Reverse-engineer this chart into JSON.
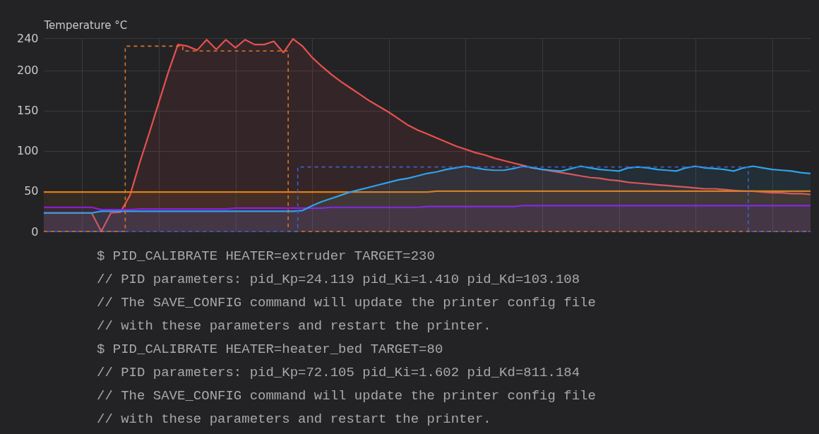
{
  "chart_data": {
    "type": "area",
    "ylabel": "Temperature °C",
    "categories": [
      null,
      null,
      null,
      null,
      null,
      null,
      null,
      null,
      null,
      null,
      null,
      null,
      null,
      null,
      null,
      null,
      null,
      null,
      null,
      null,
      null,
      null,
      null,
      null,
      null,
      null,
      null,
      null,
      null,
      null,
      null,
      null,
      null,
      null,
      null,
      null,
      null,
      null,
      null,
      null,
      null,
      null,
      null,
      null,
      null,
      null,
      null,
      null,
      null,
      null,
      null,
      null,
      null,
      null,
      null,
      null,
      null,
      null,
      null,
      null,
      null,
      null,
      null,
      null,
      null,
      null,
      null,
      null,
      null,
      null,
      null,
      null,
      null,
      null,
      null,
      null,
      null,
      null,
      null,
      null,
      null
    ],
    "ylim": [
      0,
      240
    ],
    "yticks": [
      0,
      50,
      100,
      150,
      200,
      240
    ],
    "grid": true,
    "tick_labels": "y",
    "series": [
      {
        "color": "#e8504f",
        "values": [
          23,
          23,
          23,
          23,
          23,
          23,
          0,
          23,
          24,
          45,
          85,
          122,
          160,
          198,
          232,
          230,
          225,
          238,
          226,
          238,
          228,
          238,
          232,
          232,
          236,
          222,
          239,
          230,
          216,
          205,
          195,
          186,
          178,
          170,
          162,
          155,
          148,
          140,
          132,
          126,
          121,
          116,
          111,
          106,
          102,
          98,
          95,
          91,
          88,
          85,
          82,
          79,
          77,
          75,
          73,
          71,
          69,
          67,
          66,
          64,
          63,
          61,
          60,
          59,
          58,
          57,
          56,
          55,
          54,
          53,
          53,
          52,
          51,
          50,
          50,
          49,
          48,
          48,
          47,
          47,
          46
        ]
      },
      {
        "color": "#e07d14",
        "values": [
          49,
          49,
          49,
          49,
          49,
          49,
          49,
          49,
          49,
          49,
          49,
          49,
          49,
          49,
          49,
          49,
          49,
          49,
          49,
          49,
          49,
          49,
          49,
          49,
          49,
          49,
          49,
          49,
          49,
          49,
          49,
          49,
          49,
          49,
          49,
          49,
          49,
          49,
          49,
          49,
          49,
          50,
          50,
          50,
          50,
          50,
          50,
          50,
          50,
          50,
          50,
          50,
          50,
          50,
          50,
          50,
          50,
          50,
          50,
          50,
          50,
          50,
          50,
          50,
          50,
          50,
          50,
          50,
          50,
          50,
          50,
          50,
          50,
          50,
          50,
          50,
          50,
          50,
          50,
          50,
          50
        ]
      },
      {
        "color": "#8a1fe0",
        "values": [
          30,
          30,
          30,
          30,
          30,
          30,
          27,
          27,
          27,
          27,
          28,
          28,
          28,
          28,
          28,
          28,
          28,
          28,
          28,
          28,
          29,
          29,
          29,
          29,
          29,
          29,
          29,
          29,
          29,
          29,
          30,
          30,
          30,
          30,
          30,
          30,
          30,
          30,
          30,
          30,
          31,
          31,
          31,
          31,
          31,
          31,
          31,
          31,
          31,
          31,
          32,
          32,
          32,
          32,
          32,
          32,
          32,
          32,
          32,
          32,
          32,
          32,
          32,
          32,
          32,
          32,
          32,
          32,
          32,
          32,
          32,
          32,
          32,
          32,
          32,
          32,
          32,
          32,
          32,
          32,
          32
        ]
      },
      {
        "color": "#2ea3ea",
        "values": [
          23,
          23,
          23,
          23,
          23,
          23,
          25,
          25,
          25,
          25,
          25,
          25,
          25,
          25,
          25,
          25,
          25,
          25,
          25,
          25,
          25,
          25,
          25,
          25,
          25,
          25,
          25,
          26,
          32,
          37,
          41,
          45,
          49,
          52,
          55,
          58,
          61,
          64,
          66,
          69,
          72,
          74,
          77,
          79,
          81,
          79,
          77,
          76,
          76,
          78,
          81,
          79,
          77,
          76,
          75,
          78,
          81,
          79,
          77,
          76,
          75,
          79,
          80,
          79,
          77,
          76,
          75,
          79,
          81,
          79,
          78,
          77,
          75,
          79,
          81,
          79,
          77,
          76,
          75,
          73,
          72
        ]
      },
      {
        "type": "step",
        "line_style": "dashed",
        "color": "#d9772b",
        "values": [
          0,
          0,
          0,
          0,
          0,
          0,
          0,
          0,
          0,
          230,
          230,
          230,
          230,
          230,
          230,
          224,
          224,
          224,
          224,
          224,
          224,
          224,
          224,
          224,
          224,
          224,
          0,
          0,
          0,
          0,
          0,
          0,
          0,
          0,
          0,
          0,
          0,
          0,
          0,
          0,
          0,
          0,
          0,
          0,
          0,
          0,
          0,
          0,
          0,
          0,
          0,
          0,
          0,
          0,
          0,
          0,
          0,
          0,
          0,
          0,
          0,
          0,
          0,
          0,
          0,
          0,
          0,
          0,
          0,
          0,
          0,
          0,
          0,
          0,
          0,
          0,
          0,
          0,
          0,
          0,
          0
        ]
      },
      {
        "type": "step",
        "line_style": "dashed",
        "color": "#3a63c8",
        "values": [
          0,
          0,
          0,
          0,
          0,
          0,
          0,
          0,
          0,
          0,
          0,
          0,
          0,
          0,
          0,
          0,
          0,
          0,
          0,
          0,
          0,
          0,
          0,
          0,
          0,
          0,
          0,
          80,
          80,
          80,
          80,
          80,
          80,
          80,
          80,
          80,
          80,
          80,
          80,
          80,
          80,
          80,
          80,
          80,
          80,
          80,
          80,
          80,
          80,
          80,
          80,
          80,
          80,
          80,
          80,
          80,
          80,
          80,
          80,
          80,
          80,
          80,
          80,
          80,
          80,
          80,
          80,
          80,
          80,
          80,
          80,
          80,
          80,
          80,
          0,
          0,
          0,
          0,
          0,
          0,
          0
        ]
      }
    ],
    "annotations": [
      "$ PID_CALIBRATE HEATER=extruder TARGET=230",
      "// PID parameters: pid_Kp=24.119 pid_Ki=1.410 pid_Kd=103.108",
      "// The SAVE_CONFIG command will update the printer config file",
      "// with these parameters and restart the printer.",
      "$ PID_CALIBRATE HEATER=heater_bed TARGET=80",
      "// PID parameters: pid_Kp=72.105 pid_Ki=1.602 pid_Kd=811.184",
      "// The SAVE_CONFIG command will update the printer config file",
      "// with these parameters and restart the printer."
    ]
  }
}
